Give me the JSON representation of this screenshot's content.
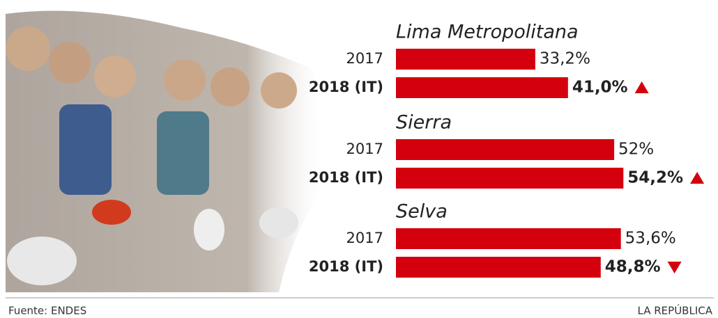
{
  "chart_data": {
    "type": "bar",
    "orientation": "horizontal",
    "color": "#d4000e",
    "groups": [
      {
        "name": "Lima Metropolitana",
        "categories": [
          "2017",
          "2018 (IT)"
        ],
        "values": [
          33.2,
          41.0
        ],
        "value_labels": [
          "33,2%",
          "41,0%"
        ]
      },
      {
        "name": "Sierra",
        "categories": [
          "2017",
          "2018 (IT)"
        ],
        "values": [
          52,
          54.2
        ],
        "value_labels": [
          "52%",
          "54,2%"
        ]
      },
      {
        "name": "Selva",
        "categories": [
          "2017",
          "2018 (IT)"
        ],
        "values": [
          53.6,
          48.8
        ],
        "value_labels": [
          "53,6%",
          "48,8%"
        ]
      }
    ],
    "source": "Fuente: ENDES",
    "credit": "LA REPÚBLICA"
  }
}
